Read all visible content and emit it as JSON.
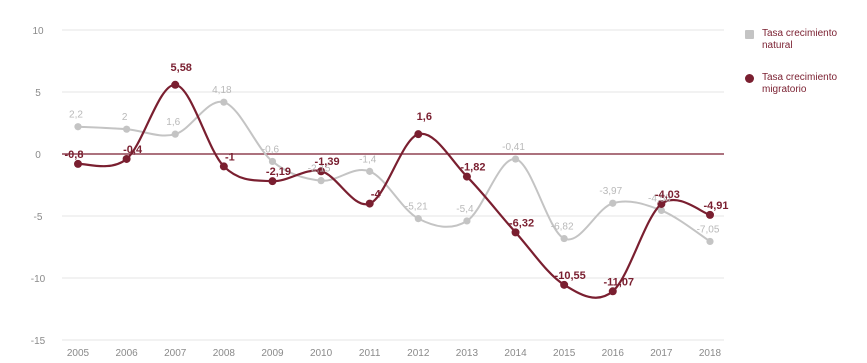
{
  "chart_data": {
    "type": "line",
    "title": "",
    "xlabel": "",
    "ylabel": "",
    "ylim": [
      -15,
      10
    ],
    "yticks": [
      10,
      5,
      0,
      -5,
      -10,
      -15
    ],
    "x": [
      "2005",
      "2006",
      "2007",
      "2008",
      "2009",
      "2010",
      "2011",
      "2012",
      "2013",
      "2014",
      "2015",
      "2016",
      "2017",
      "2018"
    ],
    "series": [
      {
        "name": "Tasa crecimiento natural",
        "color": "#c4c4c4",
        "values": [
          2.2,
          2,
          1.6,
          4.18,
          -0.6,
          -2.15,
          -1.4,
          -5.21,
          -5.4,
          -0.41,
          -6.82,
          -3.97,
          -4.55,
          -7.05
        ],
        "labels": [
          "2,2",
          "2",
          "1,6",
          "4,18",
          "-0,6",
          "-2,15",
          "-1,4",
          "-5,21",
          "-5,4",
          "-0,41",
          "-6,82",
          "-3,97",
          "-4,55",
          "-7,05"
        ]
      },
      {
        "name": "Tasa crecimiento migratorio",
        "color": "#7a1f30",
        "values": [
          -0.8,
          -0.4,
          5.58,
          -1,
          -2.19,
          -1.39,
          -4,
          1.6,
          -1.82,
          -6.32,
          -10.55,
          -11.07,
          -4.03,
          -4.91
        ],
        "labels": [
          "-0,8",
          "-0,4",
          "5,58",
          "-1",
          "-2,19",
          "-1,39",
          "-4",
          "1,6",
          "-1,82",
          "-6,32",
          "-10,55",
          "-11,07",
          "-4,03",
          "-4,91"
        ]
      }
    ],
    "zero_line_color": "#7a1f30",
    "grid": true,
    "legend_position": "right"
  },
  "legend": {
    "items": [
      {
        "label": "Tasa crecimiento\nnatural",
        "color": "#c4c4c4"
      },
      {
        "label": "Tasa crecimiento\nmigratorio",
        "color": "#7a1f30"
      }
    ]
  }
}
